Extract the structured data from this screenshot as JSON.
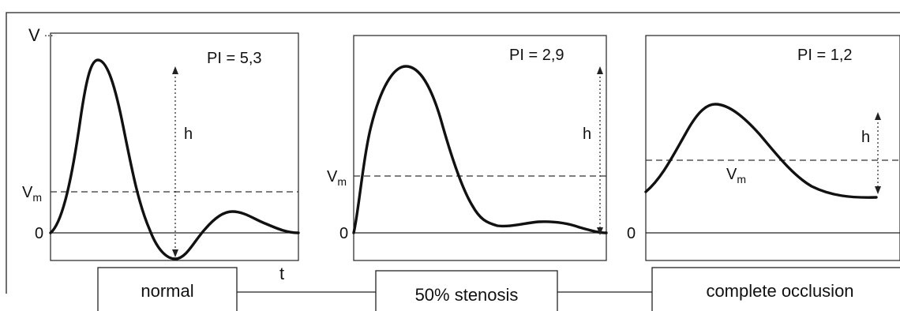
{
  "y_axis_label": "V",
  "x_axis_label": "t",
  "panels": [
    {
      "pi_label": "PI = 5,3",
      "h_label": "h",
      "vm_label": "V",
      "vm_sub": "m",
      "zero_label": "0",
      "caption": "normal"
    },
    {
      "pi_label": "PI = 2,9",
      "h_label": "h",
      "vm_label": "V",
      "vm_sub": "m",
      "zero_label": "0",
      "caption": "50% stenosis"
    },
    {
      "pi_label": "PI = 1,2",
      "h_label": "h",
      "vm_label": "V",
      "vm_sub": "m",
      "zero_label": "0",
      "caption": "complete occlusion"
    }
  ]
}
